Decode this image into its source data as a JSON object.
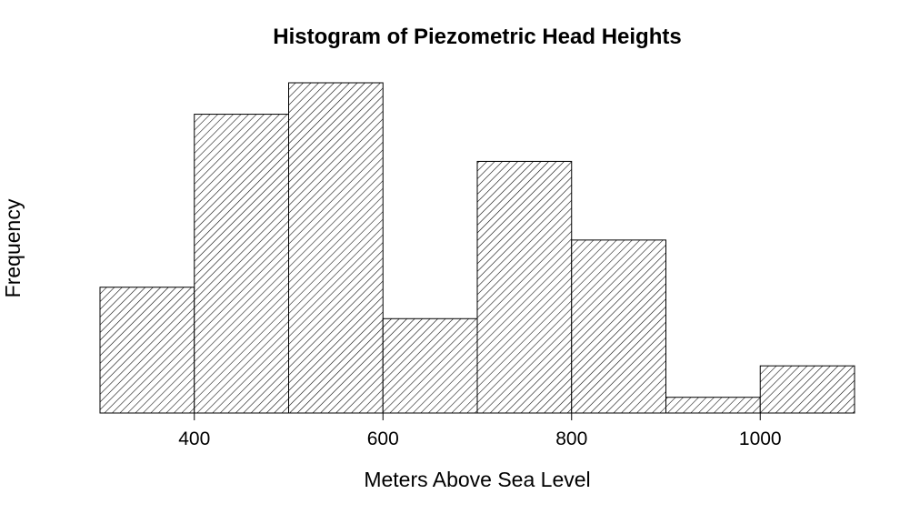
{
  "chart_data": {
    "type": "bar",
    "title": "Histogram of Piezometric Head Heights",
    "xlabel": "Meters Above Sea Level",
    "ylabel": "Frequency",
    "bins": [
      {
        "start": 300,
        "end": 400,
        "value": 8
      },
      {
        "start": 400,
        "end": 500,
        "value": 19
      },
      {
        "start": 500,
        "end": 600,
        "value": 21
      },
      {
        "start": 600,
        "end": 700,
        "value": 6
      },
      {
        "start": 700,
        "end": 800,
        "value": 16
      },
      {
        "start": 800,
        "end": 900,
        "value": 11
      },
      {
        "start": 900,
        "end": 1000,
        "value": 1
      },
      {
        "start": 1000,
        "end": 1100,
        "value": 3
      }
    ],
    "x_ticks": [
      400,
      600,
      800,
      1000
    ],
    "xlim": [
      300,
      1100
    ],
    "ylim": [
      0,
      21
    ],
    "grid": false,
    "fill_pattern": "diagonal-hatch",
    "bar_fill": "#ffffff",
    "bar_stroke": "#000000"
  }
}
